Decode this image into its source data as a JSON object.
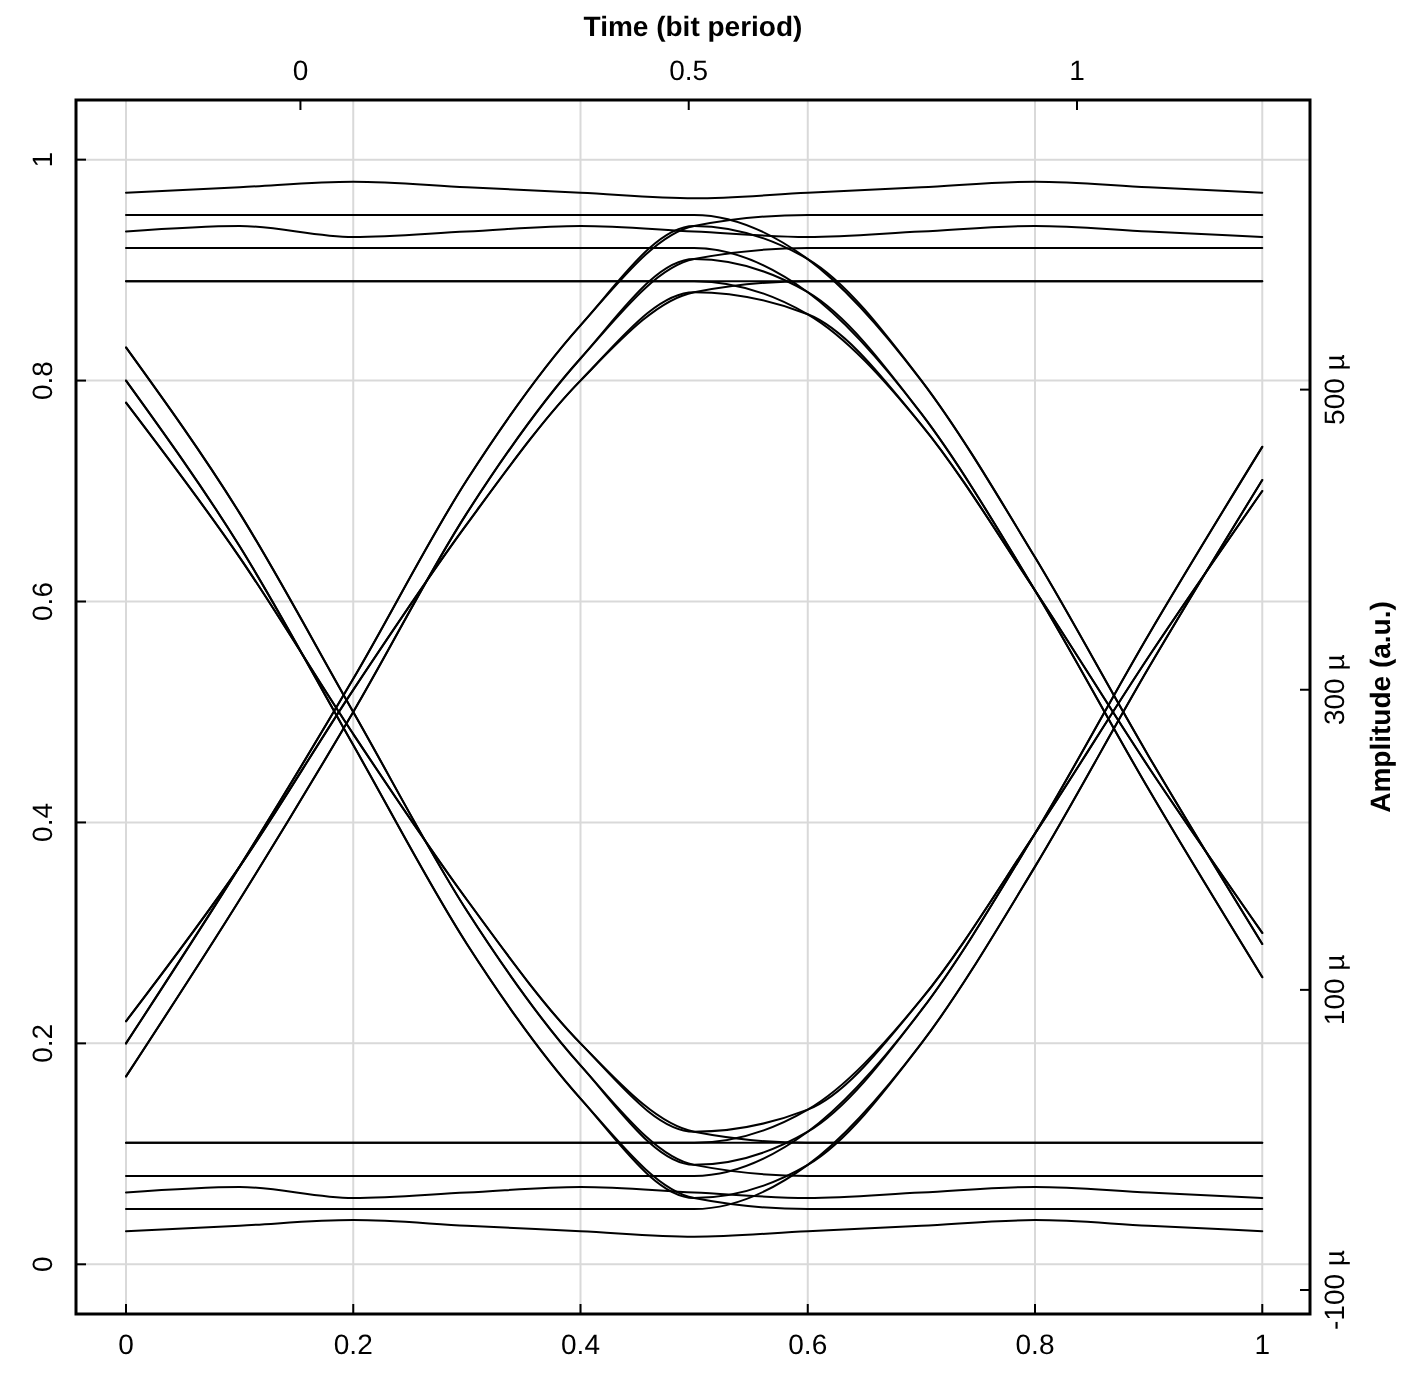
{
  "chart_data": {
    "type": "line",
    "x2label": "Time (bit period)",
    "y2label": "Amplitude (a.u.)",
    "x": [
      0,
      0.1,
      0.2,
      0.3,
      0.4,
      0.5,
      0.6,
      0.7,
      0.8,
      0.9,
      1
    ],
    "xlim": [
      -0.044,
      1.042
    ],
    "xticks": [
      0,
      0.2,
      0.4,
      0.6,
      0.8,
      1
    ],
    "x2lim": [
      -0.289,
      1.3
    ],
    "x2ticks": [
      0,
      0.5,
      1
    ],
    "ylim": [
      -0.045,
      1.054
    ],
    "yticks": [
      0,
      0.2,
      0.4,
      0.6,
      0.8,
      1
    ],
    "y2lim": [
      -116,
      693
    ],
    "y2ticks": [
      {
        "value": -100,
        "label": "-100 µ"
      },
      {
        "value": 100,
        "label": "100 µ"
      },
      {
        "value": 300,
        "label": "300 µ"
      },
      {
        "value": 500,
        "label": "500 µ"
      }
    ],
    "grid": true,
    "line_style": "solid",
    "marker": "none",
    "series": [
      {
        "color": "#000000",
        "values": [
          0.03,
          0.035,
          0.04,
          0.035,
          0.03,
          0.025,
          0.03,
          0.035,
          0.04,
          0.035,
          0.03
        ]
      },
      {
        "color": "#000000",
        "values": [
          0.935,
          0.94,
          0.93,
          0.935,
          0.94,
          0.935,
          0.93,
          0.935,
          0.94,
          0.935,
          0.93
        ]
      },
      {
        "color": "#000000",
        "values": [
          0.17,
          0.33,
          0.5,
          0.68,
          0.82,
          0.91,
          0.92,
          0.92,
          0.92,
          0.92,
          0.92
        ]
      },
      {
        "color": "#000000",
        "values": [
          0.8,
          0.65,
          0.47,
          0.29,
          0.15,
          0.06,
          0.05,
          0.05,
          0.05,
          0.05,
          0.05
        ]
      },
      {
        "color": "#000000",
        "values": [
          0.05,
          0.05,
          0.05,
          0.05,
          0.05,
          0.05,
          0.09,
          0.2,
          0.36,
          0.54,
          0.71
        ]
      },
      {
        "color": "#000000",
        "values": [
          0.92,
          0.92,
          0.92,
          0.92,
          0.92,
          0.92,
          0.88,
          0.77,
          0.61,
          0.43,
          0.26
        ]
      },
      {
        "color": "#000000",
        "values": [
          0.17,
          0.33,
          0.5,
          0.68,
          0.82,
          0.91,
          0.88,
          0.77,
          0.61,
          0.43,
          0.26
        ]
      },
      {
        "color": "#000000",
        "values": [
          0.8,
          0.65,
          0.47,
          0.29,
          0.15,
          0.06,
          0.09,
          0.2,
          0.36,
          0.54,
          0.71
        ]
      },
      {
        "color": "#000000",
        "values": [
          0.065,
          0.07,
          0.06,
          0.065,
          0.07,
          0.065,
          0.06,
          0.065,
          0.07,
          0.065,
          0.06
        ]
      },
      {
        "color": "#000000",
        "values": [
          0.97,
          0.975,
          0.98,
          0.975,
          0.97,
          0.965,
          0.97,
          0.975,
          0.98,
          0.975,
          0.97
        ]
      },
      {
        "color": "#000000",
        "values": [
          0.2,
          0.36,
          0.53,
          0.71,
          0.85,
          0.94,
          0.95,
          0.95,
          0.95,
          0.95,
          0.95
        ]
      },
      {
        "color": "#000000",
        "values": [
          0.83,
          0.68,
          0.5,
          0.32,
          0.18,
          0.09,
          0.08,
          0.08,
          0.08,
          0.08,
          0.08
        ]
      },
      {
        "color": "#000000",
        "values": [
          0.08,
          0.08,
          0.08,
          0.08,
          0.08,
          0.08,
          0.12,
          0.23,
          0.39,
          0.57,
          0.74
        ]
      },
      {
        "color": "#000000",
        "values": [
          0.95,
          0.95,
          0.95,
          0.95,
          0.95,
          0.95,
          0.91,
          0.8,
          0.64,
          0.46,
          0.29
        ]
      },
      {
        "color": "#000000",
        "values": [
          0.2,
          0.36,
          0.53,
          0.71,
          0.85,
          0.94,
          0.91,
          0.8,
          0.64,
          0.46,
          0.29
        ]
      },
      {
        "color": "#000000",
        "values": [
          0.83,
          0.68,
          0.5,
          0.32,
          0.18,
          0.09,
          0.12,
          0.23,
          0.39,
          0.57,
          0.74
        ]
      },
      {
        "color": "#000000",
        "values": [
          0.11,
          0.11,
          0.11,
          0.11,
          0.11,
          0.11,
          0.11,
          0.11,
          0.11,
          0.11,
          0.11
        ]
      },
      {
        "color": "#000000",
        "values": [
          0.89,
          0.89,
          0.89,
          0.89,
          0.89,
          0.89,
          0.89,
          0.89,
          0.89,
          0.89,
          0.89
        ]
      },
      {
        "color": "#000000",
        "values": [
          0.22,
          0.36,
          0.52,
          0.67,
          0.8,
          0.88,
          0.89,
          0.89,
          0.89,
          0.89,
          0.89
        ]
      },
      {
        "color": "#000000",
        "values": [
          0.78,
          0.64,
          0.48,
          0.33,
          0.2,
          0.12,
          0.11,
          0.11,
          0.11,
          0.11,
          0.11
        ]
      },
      {
        "color": "#000000",
        "values": [
          0.11,
          0.11,
          0.11,
          0.11,
          0.11,
          0.11,
          0.14,
          0.24,
          0.39,
          0.55,
          0.7
        ]
      },
      {
        "color": "#000000",
        "values": [
          0.89,
          0.89,
          0.89,
          0.89,
          0.89,
          0.89,
          0.86,
          0.76,
          0.61,
          0.45,
          0.3
        ]
      },
      {
        "color": "#000000",
        "values": [
          0.22,
          0.36,
          0.52,
          0.67,
          0.8,
          0.88,
          0.86,
          0.76,
          0.61,
          0.45,
          0.3
        ]
      },
      {
        "color": "#000000",
        "values": [
          0.78,
          0.64,
          0.48,
          0.33,
          0.2,
          0.12,
          0.14,
          0.24,
          0.39,
          0.55,
          0.7
        ]
      }
    ]
  }
}
